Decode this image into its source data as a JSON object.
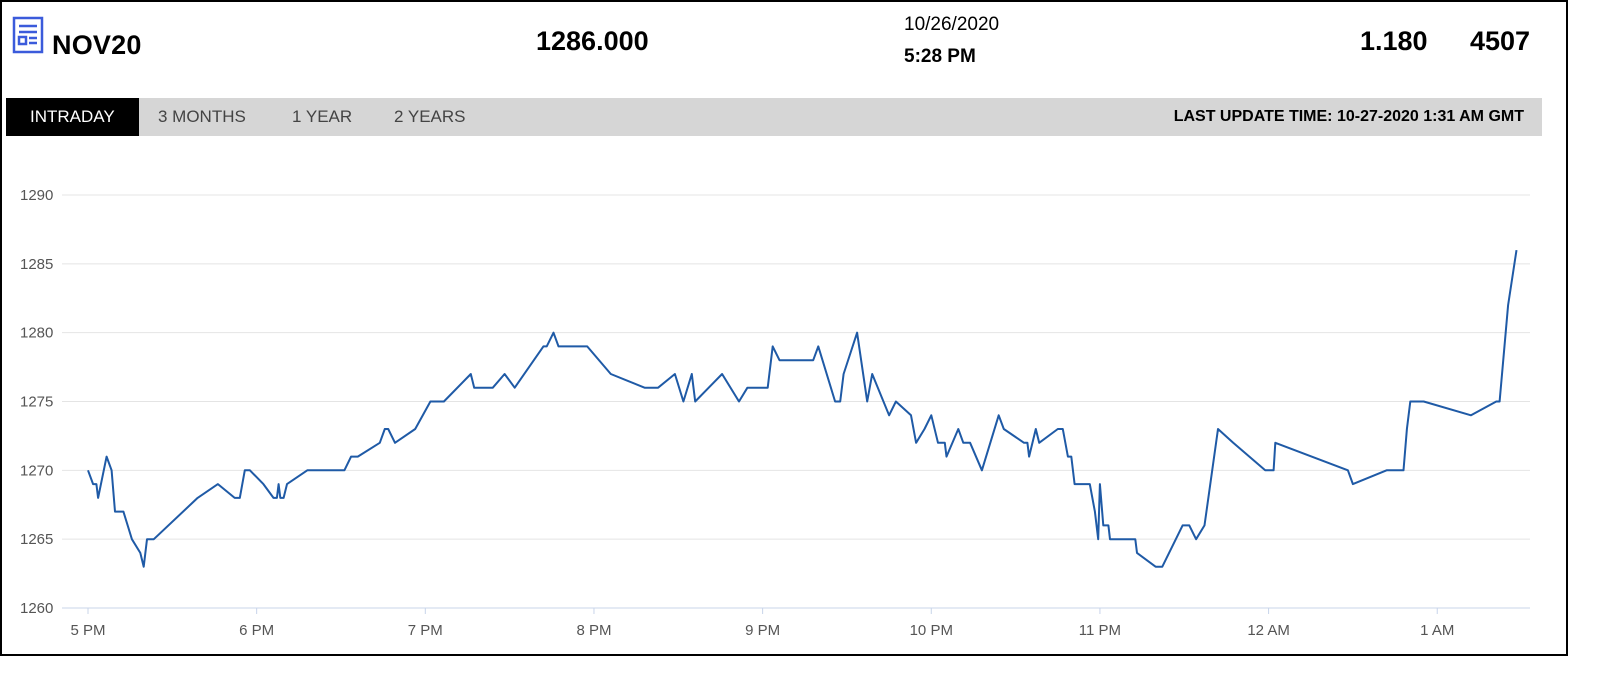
{
  "header": {
    "symbol": "NOV20",
    "price": "1286.000",
    "date": "10/26/2020",
    "time": "5:28 PM",
    "change": "1.180",
    "volume": "4507"
  },
  "tabs": [
    {
      "label": "INTRADAY",
      "active": true
    },
    {
      "label": "3 MONTHS",
      "active": false
    },
    {
      "label": "1 YEAR",
      "active": false
    },
    {
      "label": "2 YEARS",
      "active": false
    }
  ],
  "last_update": "LAST UPDATE TIME: 10-27-2020 1:31 AM GMT",
  "colors": {
    "line": "#1f5aa6",
    "grid": "#e4e4e4",
    "tab_bg": "#d6d6d6",
    "icon": "#3b5bdb"
  },
  "icon": "report-icon",
  "chart_data": {
    "type": "line",
    "title": "",
    "xlabel": "",
    "ylabel": "",
    "ylim": [
      1260,
      1290
    ],
    "xlim_hours": [
      17,
      25.55
    ],
    "yticks": [
      1260,
      1265,
      1270,
      1275,
      1280,
      1285,
      1290
    ],
    "xticks": [
      {
        "t": 17,
        "label": "5 PM"
      },
      {
        "t": 18,
        "label": "6 PM"
      },
      {
        "t": 19,
        "label": "7 PM"
      },
      {
        "t": 20,
        "label": "8 PM"
      },
      {
        "t": 21,
        "label": "9 PM"
      },
      {
        "t": 22,
        "label": "10 PM"
      },
      {
        "t": 23,
        "label": "11 PM"
      },
      {
        "t": 24,
        "label": "12 AM"
      },
      {
        "t": 25,
        "label": "1 AM"
      }
    ],
    "grid": true,
    "series": [
      {
        "points": [
          [
            17.0,
            1270
          ],
          [
            17.03,
            1269
          ],
          [
            17.05,
            1269
          ],
          [
            17.06,
            1268
          ],
          [
            17.11,
            1271
          ],
          [
            17.14,
            1270
          ],
          [
            17.16,
            1267
          ],
          [
            17.21,
            1267
          ],
          [
            17.26,
            1265
          ],
          [
            17.31,
            1264
          ],
          [
            17.33,
            1263
          ],
          [
            17.35,
            1265
          ],
          [
            17.39,
            1265
          ],
          [
            17.65,
            1268
          ],
          [
            17.77,
            1269
          ],
          [
            17.87,
            1268
          ],
          [
            17.9,
            1268
          ],
          [
            17.93,
            1270
          ],
          [
            17.96,
            1270
          ],
          [
            18.04,
            1269
          ],
          [
            18.1,
            1268
          ],
          [
            18.12,
            1268
          ],
          [
            18.13,
            1269
          ],
          [
            18.14,
            1268
          ],
          [
            18.16,
            1268
          ],
          [
            18.18,
            1269
          ],
          [
            18.3,
            1270
          ],
          [
            18.52,
            1270
          ],
          [
            18.56,
            1271
          ],
          [
            18.6,
            1271
          ],
          [
            18.73,
            1272
          ],
          [
            18.76,
            1273
          ],
          [
            18.78,
            1273
          ],
          [
            18.82,
            1272
          ],
          [
            18.94,
            1273
          ],
          [
            19.03,
            1275
          ],
          [
            19.11,
            1275
          ],
          [
            19.27,
            1277
          ],
          [
            19.29,
            1276
          ],
          [
            19.4,
            1276
          ],
          [
            19.47,
            1277
          ],
          [
            19.53,
            1276
          ],
          [
            19.7,
            1279
          ],
          [
            19.72,
            1279
          ],
          [
            19.76,
            1280
          ],
          [
            19.79,
            1279
          ],
          [
            19.96,
            1279
          ],
          [
            20.1,
            1277
          ],
          [
            20.3,
            1276
          ],
          [
            20.38,
            1276
          ],
          [
            20.48,
            1277
          ],
          [
            20.53,
            1275
          ],
          [
            20.58,
            1277
          ],
          [
            20.6,
            1275
          ],
          [
            20.68,
            1276
          ],
          [
            20.76,
            1277
          ],
          [
            20.86,
            1275
          ],
          [
            20.91,
            1276
          ],
          [
            21.03,
            1276
          ],
          [
            21.06,
            1279
          ],
          [
            21.1,
            1278
          ],
          [
            21.3,
            1278
          ],
          [
            21.33,
            1279
          ],
          [
            21.43,
            1275
          ],
          [
            21.46,
            1275
          ],
          [
            21.48,
            1277
          ],
          [
            21.56,
            1280
          ],
          [
            21.62,
            1275
          ],
          [
            21.65,
            1277
          ],
          [
            21.75,
            1274
          ],
          [
            21.79,
            1275
          ],
          [
            21.88,
            1274
          ],
          [
            21.91,
            1272
          ],
          [
            21.96,
            1273
          ],
          [
            22.0,
            1274
          ],
          [
            22.04,
            1272
          ],
          [
            22.08,
            1272
          ],
          [
            22.09,
            1271
          ],
          [
            22.16,
            1273
          ],
          [
            22.19,
            1272
          ],
          [
            22.23,
            1272
          ],
          [
            22.3,
            1270
          ],
          [
            22.4,
            1274
          ],
          [
            22.43,
            1273
          ],
          [
            22.55,
            1272
          ],
          [
            22.57,
            1272
          ],
          [
            22.58,
            1271
          ],
          [
            22.62,
            1273
          ],
          [
            22.64,
            1272
          ],
          [
            22.75,
            1273
          ],
          [
            22.78,
            1273
          ],
          [
            22.81,
            1271
          ],
          [
            22.83,
            1271
          ],
          [
            22.85,
            1269
          ],
          [
            22.94,
            1269
          ],
          [
            22.97,
            1267
          ],
          [
            22.99,
            1265
          ],
          [
            23.0,
            1269
          ],
          [
            23.02,
            1266
          ],
          [
            23.04,
            1266
          ],
          [
            23.05,
            1266
          ],
          [
            23.06,
            1265
          ],
          [
            23.21,
            1265
          ],
          [
            23.22,
            1264
          ],
          [
            23.33,
            1263
          ],
          [
            23.37,
            1263
          ],
          [
            23.49,
            1266
          ],
          [
            23.53,
            1266
          ],
          [
            23.57,
            1265
          ],
          [
            23.62,
            1266
          ],
          [
            23.7,
            1273
          ],
          [
            23.79,
            1272
          ],
          [
            23.98,
            1270
          ],
          [
            24.03,
            1270
          ],
          [
            24.04,
            1272
          ],
          [
            24.47,
            1270
          ],
          [
            24.5,
            1269
          ],
          [
            24.7,
            1270
          ],
          [
            24.8,
            1270
          ],
          [
            24.82,
            1273
          ],
          [
            24.84,
            1275
          ],
          [
            24.92,
            1275
          ],
          [
            25.2,
            1274
          ],
          [
            25.35,
            1275
          ],
          [
            25.37,
            1275
          ],
          [
            25.42,
            1282
          ],
          [
            25.47,
            1286
          ]
        ]
      }
    ]
  }
}
